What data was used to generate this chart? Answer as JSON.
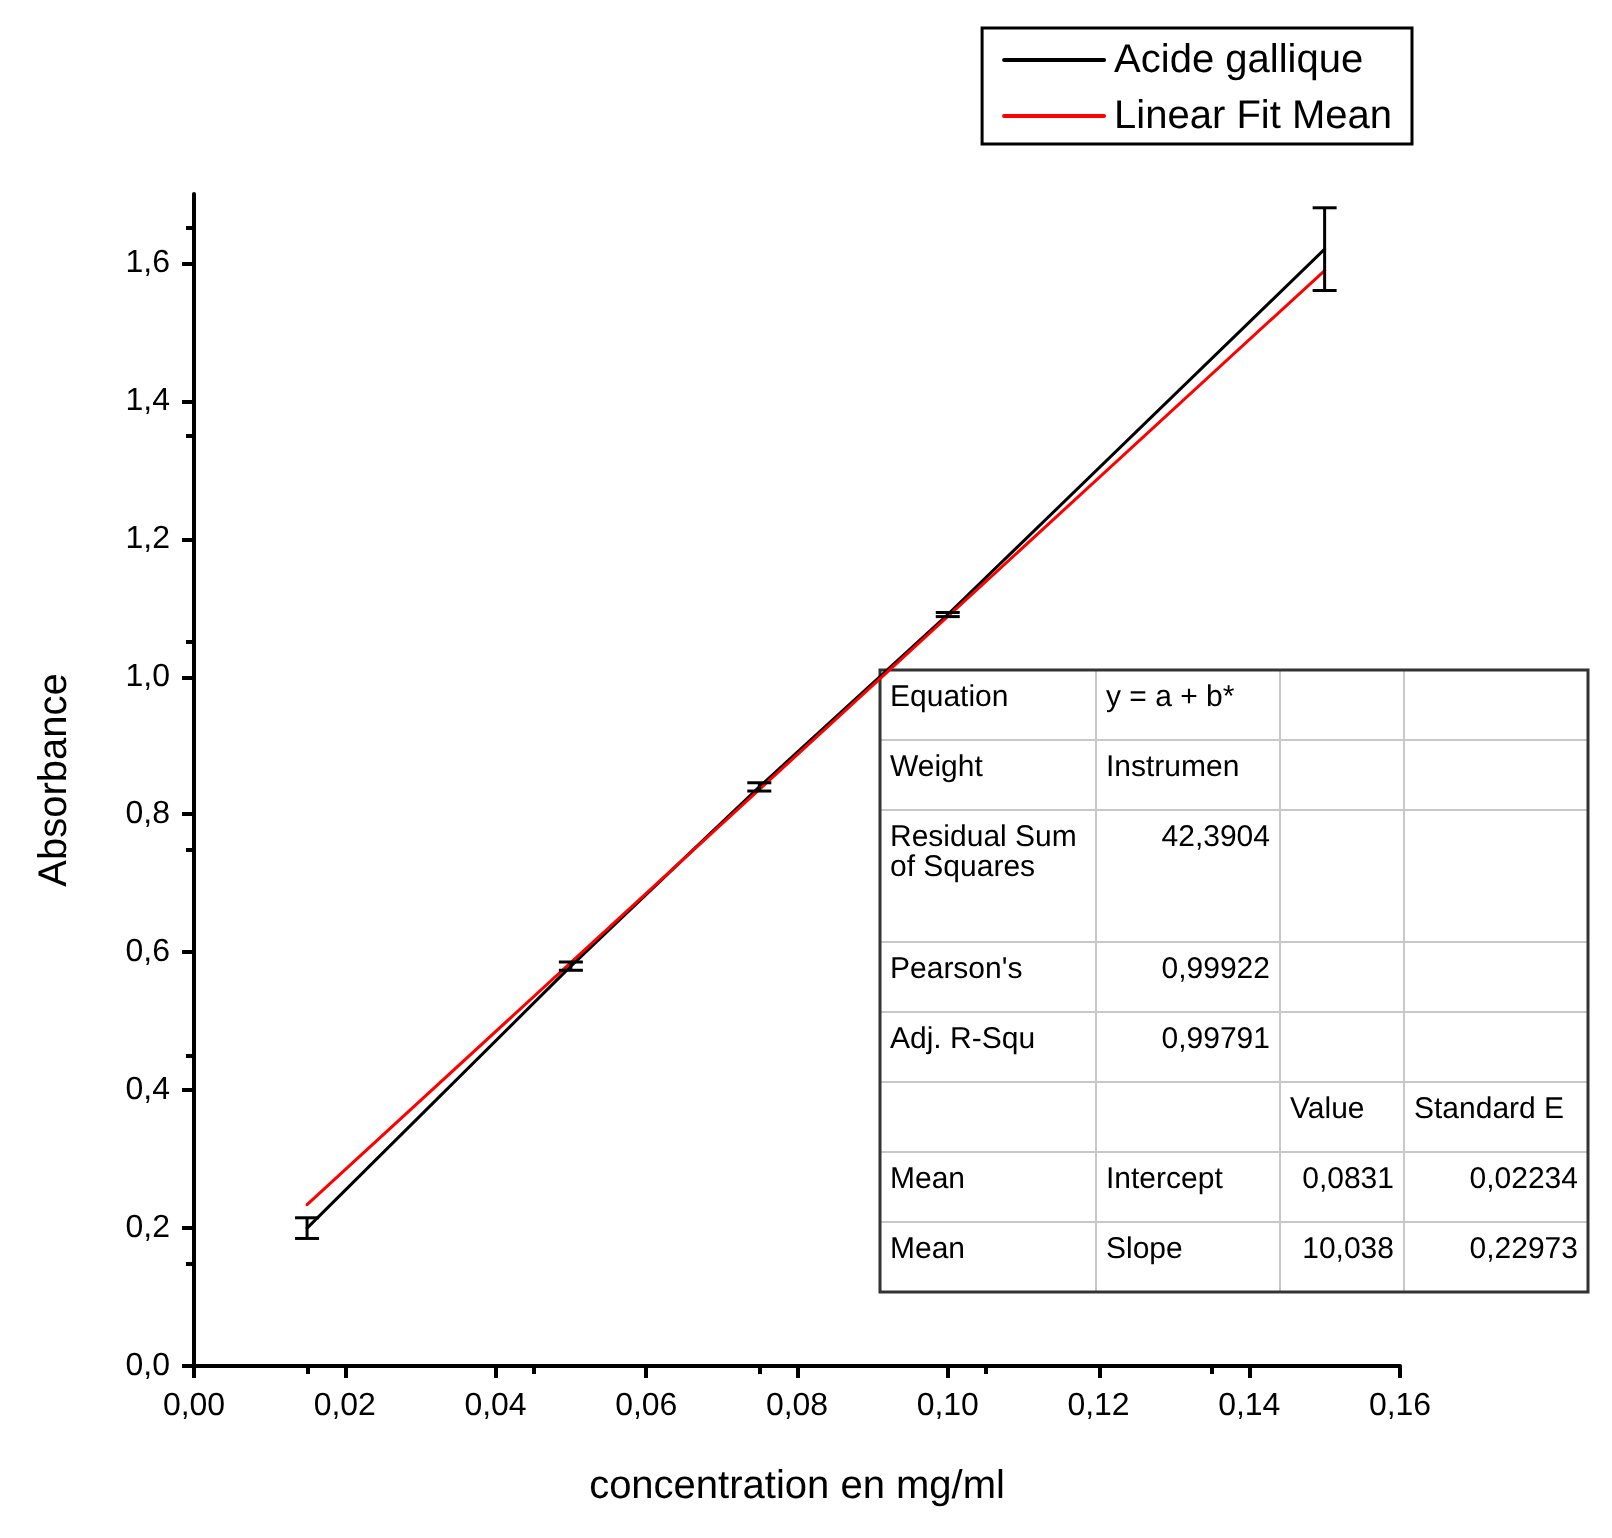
{
  "chart_data": {
    "type": "line",
    "xlabel": "concentration en mg/ml",
    "ylabel": "Absorbance",
    "xlim": [
      0,
      0.16
    ],
    "ylim": [
      0,
      1.7
    ],
    "xticks": [
      {
        "value": 0,
        "label": "0,00"
      },
      {
        "value": 0.02,
        "label": "0,02"
      },
      {
        "value": 0.04,
        "label": "0,04"
      },
      {
        "value": 0.06,
        "label": "0,06"
      },
      {
        "value": 0.08,
        "label": "0,08"
      },
      {
        "value": 0.1,
        "label": "0,10"
      },
      {
        "value": 0.12,
        "label": "0,12"
      },
      {
        "value": 0.14,
        "label": "0,14"
      },
      {
        "value": 0.16,
        "label": "0,16"
      }
    ],
    "yticks": [
      {
        "value": 0,
        "label": "0,0"
      },
      {
        "value": 0.2,
        "label": "0,2"
      },
      {
        "value": 0.4,
        "label": "0,4"
      },
      {
        "value": 0.6,
        "label": "0,6"
      },
      {
        "value": 0.8,
        "label": "0,8"
      },
      {
        "value": 1,
        "label": "1,0"
      },
      {
        "value": 1.2,
        "label": "1,2"
      },
      {
        "value": 1.4,
        "label": "1,4"
      },
      {
        "value": 1.6,
        "label": "1,6"
      }
    ],
    "series": [
      {
        "name": "Acide gallique",
        "color": "#000000",
        "x": [
          0.015,
          0.05,
          0.075,
          0.1,
          0.15
        ],
        "values": [
          0.2,
          0.58,
          0.84,
          1.09,
          1.62
        ],
        "errors": [
          0.015,
          0.006,
          0.006,
          0.003,
          0.06
        ]
      },
      {
        "name": "Linear Fit Mean",
        "color": "#ff0000",
        "x": [
          0.015,
          0.15
        ],
        "values": [
          0.234,
          1.589
        ]
      }
    ],
    "marker": "none",
    "line_style": "solid",
    "grid": false,
    "legend": "top right",
    "annotations": [
      "Equation\ty = a + b*",
      "Weight\tInstrumen",
      "Residual Sum of Squares\t42,3904",
      "Pearson's\t0,99922",
      "Adj. R-Squ\t0,99791",
      "\t\tValue\tStandard E",
      "Mean\tIntercept\t0,0831\t0,02234",
      "Mean\tSlope\t10,038\t0,22973"
    ]
  }
}
